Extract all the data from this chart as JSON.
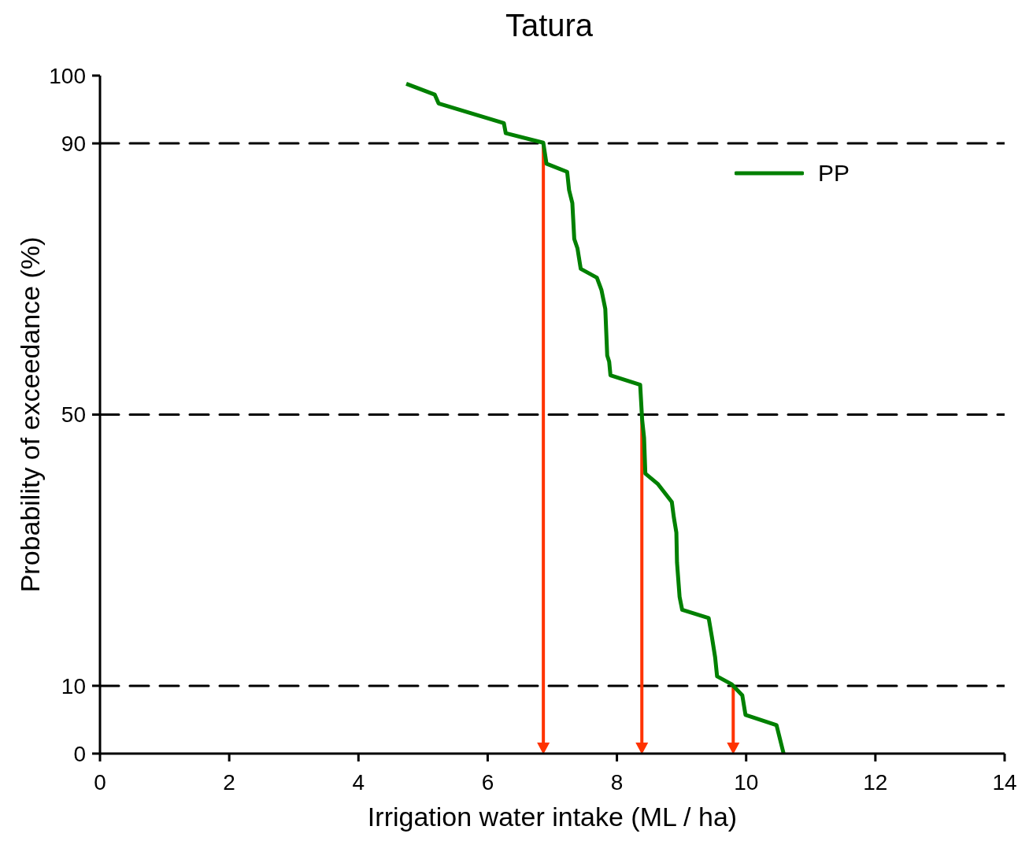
{
  "chart_data": {
    "type": "line",
    "title": "Tatura",
    "xlabel": "Irrigation water intake (ML / ha)",
    "ylabel": "Probability of exceedance (%)",
    "xlim": [
      0,
      14
    ],
    "xticks": [
      0,
      2,
      4,
      6,
      8,
      10,
      12,
      14
    ],
    "ylim": [
      0,
      100
    ],
    "yticks": [
      0,
      10,
      50,
      90,
      100
    ],
    "legend": "top right",
    "series": [
      {
        "name": "PP",
        "color": "#008000",
        "line_style": "solid",
        "x": [
          4.74,
          5.18,
          5.24,
          6.25,
          6.28,
          6.86,
          6.91,
          7.23,
          7.26,
          7.31,
          7.34,
          7.39,
          7.44,
          7.69,
          7.76,
          7.82,
          7.85,
          7.88,
          7.9,
          8.36,
          8.39,
          8.42,
          8.44,
          8.63,
          8.85,
          8.88,
          8.92,
          8.93,
          8.97,
          9.01,
          9.42,
          9.47,
          9.52,
          9.55,
          9.78,
          9.94,
          9.99,
          10.47,
          10.58
        ],
        "values": [
          98.8,
          97.2,
          95.9,
          93.0,
          91.5,
          90.1,
          87.0,
          85.8,
          83.1,
          81.2,
          75.9,
          74.5,
          71.5,
          70.2,
          68.4,
          65.6,
          58.7,
          57.8,
          55.8,
          54.4,
          49.3,
          46.6,
          41.3,
          39.8,
          37.1,
          34.9,
          32.6,
          28.2,
          23.1,
          21.2,
          20.0,
          17.2,
          14.2,
          11.4,
          10.2,
          8.6,
          5.7,
          4.2,
          0
        ]
      }
    ],
    "ref_lines": [
      {
        "axis": "y",
        "value": 90,
        "color": "#000000",
        "line_style": "dashed"
      },
      {
        "axis": "y",
        "value": 50,
        "color": "#000000",
        "line_style": "dashed"
      },
      {
        "axis": "y",
        "value": 10,
        "color": "#000000",
        "line_style": "dashed"
      }
    ]
  }
}
